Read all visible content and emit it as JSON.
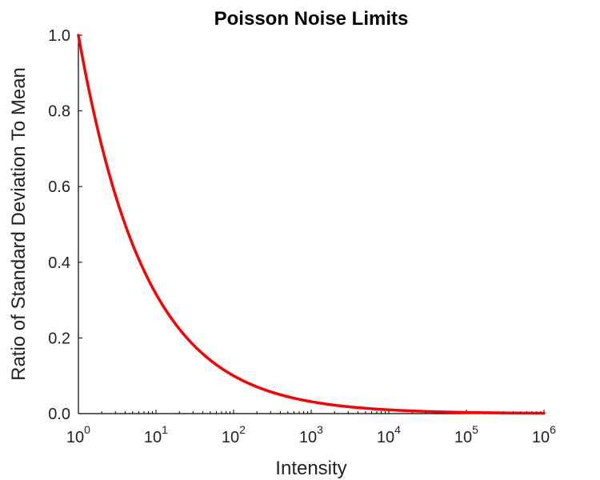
{
  "chart_data": {
    "type": "line",
    "title": "Poisson Noise Limits",
    "xlabel": "Intensity",
    "ylabel": "Ratio of Standard Deviation To Mean",
    "xscale": "log",
    "xlim": [
      1,
      1000000
    ],
    "ylim": [
      0,
      1
    ],
    "grid": false,
    "x_ticks": [
      {
        "base": "10",
        "exp": "0",
        "value": 1
      },
      {
        "base": "10",
        "exp": "1",
        "value": 10
      },
      {
        "base": "10",
        "exp": "2",
        "value": 100
      },
      {
        "base": "10",
        "exp": "3",
        "value": 1000
      },
      {
        "base": "10",
        "exp": "4",
        "value": 10000
      },
      {
        "base": "10",
        "exp": "5",
        "value": 100000
      },
      {
        "base": "10",
        "exp": "6",
        "value": 1000000
      }
    ],
    "y_ticks": [
      {
        "label": "0.0",
        "value": 0
      },
      {
        "label": "0.2",
        "value": 0.2
      },
      {
        "label": "0.4",
        "value": 0.4
      },
      {
        "label": "0.6",
        "value": 0.6
      },
      {
        "label": "0.8",
        "value": 0.8
      },
      {
        "label": "1.0",
        "value": 1
      }
    ],
    "series": [
      {
        "color": "#ff0000",
        "x": [
          1,
          1.5,
          2,
          3,
          4,
          5,
          7,
          10,
          15,
          20,
          30,
          50,
          70,
          100,
          150,
          200,
          300,
          500,
          700,
          1000,
          2000,
          5000,
          10000,
          20000,
          50000,
          100000,
          200000,
          500000,
          1000000
        ],
        "y": [
          1,
          0.8165,
          0.7071,
          0.5774,
          0.5,
          0.4472,
          0.378,
          0.3162,
          0.2582,
          0.2236,
          0.1826,
          0.1414,
          0.1195,
          0.1,
          0.0816,
          0.0707,
          0.0577,
          0.0447,
          0.0378,
          0.0316,
          0.0224,
          0.0141,
          0.01,
          0.0071,
          0.0045,
          0.0032,
          0.0022,
          0.0014,
          0.001
        ]
      }
    ]
  }
}
